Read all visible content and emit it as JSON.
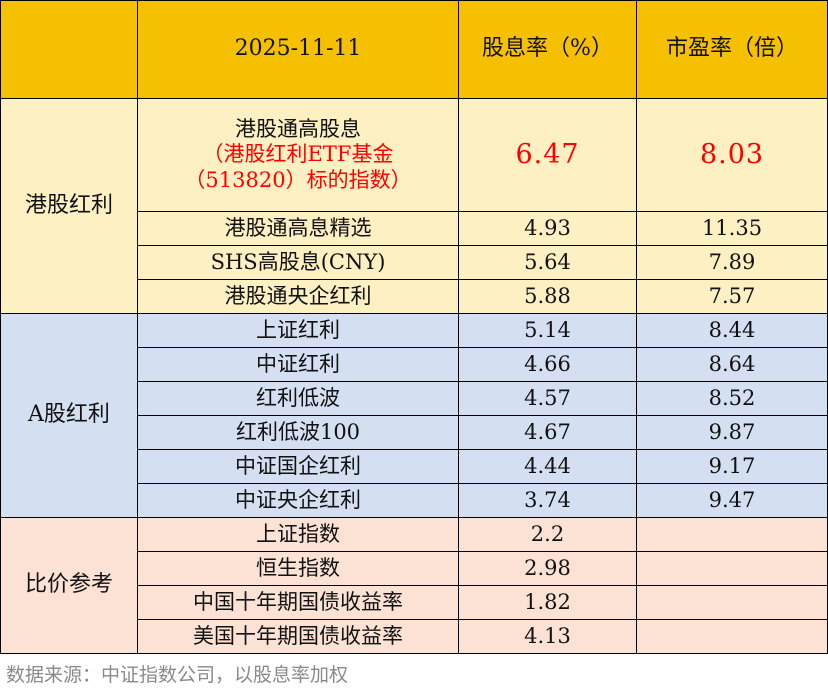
{
  "header": {
    "date": "2025-11-11",
    "col_yield": "股息率（%）",
    "col_pe": "市盈率（倍）"
  },
  "groups": {
    "hk": "港股红利",
    "a": "A股红利",
    "compare": "比价参考"
  },
  "featured": {
    "line1": "港股通高股息",
    "line2": "（港股红利ETF基金",
    "line3": "（513820）标的指数）",
    "yield": "6.47",
    "pe": "8.03"
  },
  "rows": [
    {
      "name": "港股通高息精选",
      "yield": "4.93",
      "pe": "11.35"
    },
    {
      "name": "SHS高股息(CNY)",
      "yield": "5.64",
      "pe": "7.89"
    },
    {
      "name": "港股通央企红利",
      "yield": "5.88",
      "pe": "7.57"
    },
    {
      "name": "上证红利",
      "yield": "5.14",
      "pe": "8.44"
    },
    {
      "name": "中证红利",
      "yield": "4.66",
      "pe": "8.64"
    },
    {
      "name": "红利低波",
      "yield": "4.57",
      "pe": "8.52"
    },
    {
      "name": "红利低波100",
      "yield": "4.67",
      "pe": "9.87"
    },
    {
      "name": "中证国企红利",
      "yield": "4.44",
      "pe": "9.17"
    },
    {
      "name": "中证央企红利",
      "yield": "3.74",
      "pe": "9.47"
    },
    {
      "name": "上证指数",
      "yield": "2.2",
      "pe": ""
    },
    {
      "name": "恒生指数",
      "yield": "2.98",
      "pe": ""
    },
    {
      "name": "中国十年期国债收益率",
      "yield": "1.82",
      "pe": ""
    },
    {
      "name": "美国十年期国债收益率",
      "yield": "4.13",
      "pe": ""
    }
  ],
  "footer": {
    "source": "数据来源：中证指数公司，以股息率加权"
  }
}
